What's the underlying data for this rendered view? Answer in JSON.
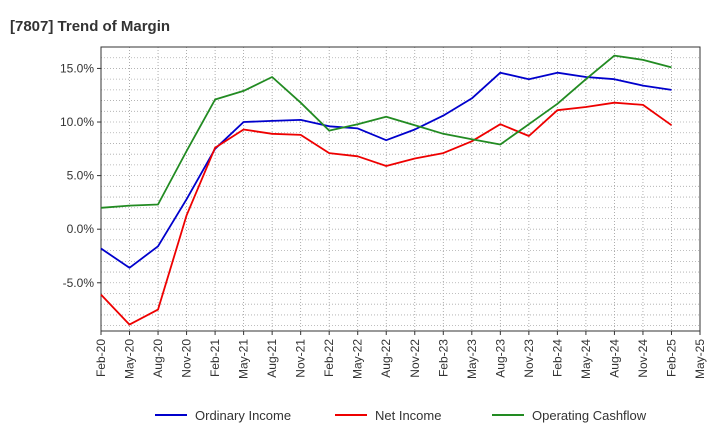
{
  "chart_data": {
    "type": "line",
    "title": "[7807]  Trend of Margin",
    "xlabel": "",
    "ylabel": "",
    "x": [
      "Feb-20",
      "May-20",
      "Aug-20",
      "Nov-20",
      "Feb-21",
      "May-21",
      "Aug-21",
      "Nov-21",
      "Feb-22",
      "May-22",
      "Aug-22",
      "Nov-22",
      "Feb-23",
      "May-23",
      "Aug-23",
      "Nov-23",
      "Feb-24",
      "May-24",
      "Aug-24",
      "Nov-24",
      "Feb-25",
      "May-25"
    ],
    "ylim": [
      -9.5,
      17.0
    ],
    "yticks": [
      {
        "value": 15,
        "label": "15.0%"
      },
      {
        "value": 10,
        "label": "10.0%"
      },
      {
        "value": 5,
        "label": "5.0%"
      },
      {
        "value": 0,
        "label": "0.0%"
      },
      {
        "value": -5,
        "label": "-5.0%"
      }
    ],
    "grid": true,
    "legend_position": "bottom",
    "series": [
      {
        "name": "Ordinary Income",
        "color": "#0000cc",
        "values": [
          -1.8,
          -3.6,
          -1.6,
          2.8,
          7.5,
          10.0,
          10.1,
          10.2,
          9.6,
          9.4,
          8.3,
          9.3,
          10.6,
          12.2,
          14.6,
          14.0,
          14.6,
          14.2,
          14.0,
          13.4,
          13.0,
          null
        ]
      },
      {
        "name": "Net Income",
        "color": "#ee0000",
        "values": [
          -6.1,
          -8.9,
          -7.5,
          1.3,
          7.6,
          9.3,
          8.9,
          8.8,
          7.1,
          6.8,
          5.9,
          6.6,
          7.1,
          8.2,
          9.8,
          8.7,
          11.1,
          11.4,
          11.8,
          11.6,
          9.7,
          null
        ]
      },
      {
        "name": "Operating Cashflow",
        "color": "#228b22",
        "values": [
          2.0,
          2.2,
          2.3,
          7.3,
          12.1,
          12.9,
          14.2,
          11.8,
          9.2,
          9.8,
          10.5,
          9.7,
          8.9,
          8.4,
          7.9,
          9.8,
          11.7,
          14.0,
          16.2,
          15.8,
          15.1,
          null
        ]
      }
    ]
  }
}
